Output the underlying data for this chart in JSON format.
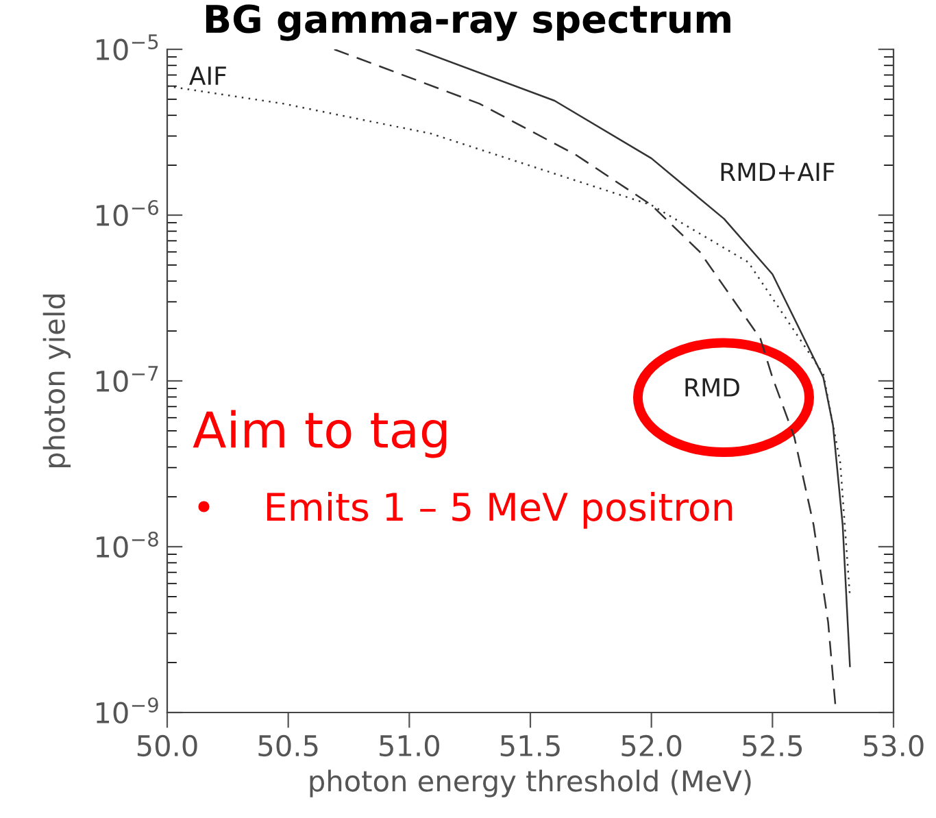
{
  "chart_data": {
    "type": "line",
    "title": "BG gamma-ray spectrum",
    "xlabel": "photon energy threshold (MeV)",
    "ylabel": "photon yield",
    "log": "y",
    "grid": false,
    "legend": false,
    "marker": "none",
    "xlim": [
      50.0,
      53.0
    ],
    "xticks": [
      {
        "value": 50.0,
        "label": "50.0"
      },
      {
        "value": 50.5,
        "label": "50.5"
      },
      {
        "value": 51.0,
        "label": "51.0"
      },
      {
        "value": 51.5,
        "label": "51.5"
      },
      {
        "value": 52.0,
        "label": "52.0"
      },
      {
        "value": 52.5,
        "label": "52.5"
      },
      {
        "value": 53.0,
        "label": "53.0"
      }
    ],
    "ylim": [
      1e-09,
      1e-05
    ],
    "yticks": [
      {
        "value": 1e-09,
        "label": "10$^{−9}$"
      },
      {
        "value": 1e-08,
        "label": "10$^{−8}$"
      },
      {
        "value": 1e-07,
        "label": "10$^{−7}$"
      },
      {
        "value": 1e-06,
        "label": "10$^{−6}$"
      },
      {
        "value": 1e-05,
        "label": "10$^{−5}$"
      }
    ],
    "series": [
      {
        "name": "AIF",
        "color": "#333333",
        "line_style": "dotted",
        "x": [
          50.0,
          50.48,
          51.09,
          52.0,
          52.4,
          52.71,
          52.78,
          52.82
        ],
        "values": [
          6e-06,
          4.7e-06,
          3.1e-06,
          1.15e-06,
          5.2e-07,
          1.1e-07,
          3.2e-08,
          5e-09
        ]
      },
      {
        "name": "RMD",
        "color": "#333333",
        "line_style": "dashed",
        "x": [
          50.69,
          51.29,
          51.69,
          52.0,
          52.2,
          52.45,
          52.5,
          52.59,
          52.67,
          52.73,
          52.76
        ],
        "values": [
          1e-05,
          4.7e-06,
          2.3e-06,
          1.15e-06,
          6e-07,
          1.8e-07,
          1.05e-07,
          4.6e-08,
          1.35e-08,
          3.5e-09,
          1.1e-09
        ]
      },
      {
        "name": "RMD+AIF",
        "color": "#333333",
        "line_style": "solid",
        "x": [
          51.03,
          51.6,
          52.0,
          52.3,
          52.5,
          52.71,
          52.75,
          52.79,
          52.82
        ],
        "values": [
          1e-05,
          4.9e-06,
          2.2e-06,
          9.5e-07,
          4.4e-07,
          1.05e-07,
          5.4e-08,
          1.35e-08,
          1.9e-09
        ]
      }
    ],
    "annotations": [
      "Aim to tag",
      "•    Emits 1 – 5 MeV positron"
    ]
  }
}
